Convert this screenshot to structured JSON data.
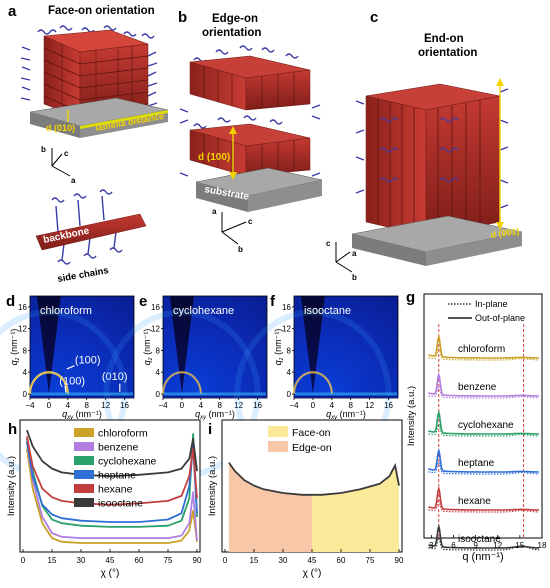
{
  "panels": {
    "a": {
      "letter": "a",
      "title": "Face-on orientation",
      "d_label": "d (010)",
      "lamella": "lamella distance",
      "axes": [
        "a",
        "b",
        "c"
      ],
      "backbone": "backbone",
      "side_chains": "side chains"
    },
    "b": {
      "letter": "b",
      "title_lines": [
        "Edge-on",
        "orientation"
      ],
      "d_label": "d (100)",
      "substrate": "substrate",
      "axes": [
        "a",
        "b",
        "c"
      ]
    },
    "c": {
      "letter": "c",
      "title_lines": [
        "End-on",
        "orientation"
      ],
      "d_label": "d (001)",
      "axes": [
        "a",
        "b",
        "c"
      ]
    },
    "d": {
      "letter": "d",
      "solvent": "chloroform",
      "peaks": [
        "(100)",
        "(100)",
        "(010)"
      ]
    },
    "e": {
      "letter": "e",
      "solvent": "cyclohexane"
    },
    "f": {
      "letter": "f",
      "solvent": "isooctane"
    },
    "g": {
      "letter": "g"
    },
    "h": {
      "letter": "h"
    },
    "i": {
      "letter": "i"
    }
  },
  "giwaxs_axes": {
    "x_label": "q",
    "x_sub": "xy",
    "x_unit": " (nm⁻¹)",
    "y_label": "q",
    "y_sub": "z",
    "y_unit": " (nm⁻¹)",
    "x_ticks": [
      "−4",
      "0",
      "4",
      "8",
      "12",
      "16"
    ],
    "y_ticks": [
      "0",
      "4",
      "8",
      "12",
      "16"
    ]
  },
  "colors": {
    "chloroform": "#c9a227",
    "benzene": "#b07fe0",
    "cyclohexane": "#2aa06a",
    "heptane": "#2f6fd6",
    "hexane": "#c33f3f",
    "isooctane": "#3a3a3a",
    "face_on": "#fbe99a",
    "edge_on": "#f7c7a8",
    "dashed_line": "#d94040"
  },
  "chart_data": [
    {
      "panel": "g",
      "type": "line",
      "xlabel": "q (nm⁻¹)",
      "ylabel": "Intensity (a.u.)",
      "xlim": [
        2,
        18
      ],
      "x_ticks": [
        3,
        6,
        9,
        12,
        15,
        18
      ],
      "legend": [
        {
          "label": "In-plane",
          "style": "dotted"
        },
        {
          "label": "Out-of-plane",
          "style": "solid"
        }
      ],
      "reference_lines_q": [
        4,
        15.5
      ],
      "series": [
        {
          "name": "chloroform",
          "peak_q": 4.0
        },
        {
          "name": "benzene",
          "peak_q": 4.0
        },
        {
          "name": "cyclohexane",
          "peak_q": 4.0
        },
        {
          "name": "heptane",
          "peak_q": 4.0
        },
        {
          "name": "hexane",
          "peak_q": 4.0
        },
        {
          "name": "isooctane",
          "peak_q": 4.0
        }
      ]
    },
    {
      "panel": "h",
      "type": "line",
      "xlabel": "χ (°)",
      "ylabel": "Intensity (a.u.)",
      "xlim": [
        0,
        90
      ],
      "x_ticks": [
        0,
        15,
        30,
        45,
        60,
        75,
        90
      ],
      "series": [
        {
          "name": "chloroform",
          "x": [
            2,
            5,
            10,
            15,
            20,
            30,
            45,
            60,
            75,
            82,
            86,
            88,
            90
          ],
          "y": [
            0.8,
            0.48,
            0.2,
            0.08,
            0.05,
            0.04,
            0.04,
            0.04,
            0.04,
            0.06,
            0.14,
            0.3,
            0.05
          ]
        },
        {
          "name": "benzene",
          "x": [
            2,
            5,
            10,
            15,
            20,
            30,
            45,
            60,
            75,
            82,
            86,
            88,
            90
          ],
          "y": [
            0.85,
            0.55,
            0.25,
            0.12,
            0.09,
            0.08,
            0.08,
            0.08,
            0.08,
            0.1,
            0.2,
            0.45,
            0.06
          ]
        },
        {
          "name": "cyclohexane",
          "x": [
            2,
            5,
            10,
            15,
            20,
            30,
            45,
            60,
            75,
            82,
            86,
            88,
            90
          ],
          "y": [
            0.88,
            0.62,
            0.34,
            0.23,
            0.2,
            0.18,
            0.17,
            0.17,
            0.18,
            0.22,
            0.4,
            0.92,
            0.25
          ]
        },
        {
          "name": "heptane",
          "x": [
            2,
            5,
            10,
            15,
            20,
            30,
            45,
            60,
            75,
            82,
            86,
            88,
            90
          ],
          "y": [
            0.86,
            0.58,
            0.35,
            0.27,
            0.24,
            0.22,
            0.21,
            0.21,
            0.23,
            0.28,
            0.5,
            0.82,
            0.28
          ]
        },
        {
          "name": "hexane",
          "x": [
            2,
            5,
            10,
            15,
            20,
            30,
            45,
            60,
            75,
            82,
            86,
            88,
            90
          ],
          "y": [
            0.9,
            0.66,
            0.48,
            0.41,
            0.38,
            0.36,
            0.35,
            0.36,
            0.38,
            0.42,
            0.58,
            0.8,
            0.4
          ]
        },
        {
          "name": "isooctane",
          "x": [
            2,
            5,
            10,
            15,
            20,
            30,
            45,
            60,
            75,
            82,
            86,
            88,
            90
          ],
          "y": [
            0.95,
            0.82,
            0.7,
            0.64,
            0.61,
            0.59,
            0.58,
            0.59,
            0.61,
            0.64,
            0.72,
            0.88,
            0.62
          ]
        }
      ]
    },
    {
      "panel": "i",
      "type": "area",
      "xlabel": "χ (°)",
      "ylabel": "Intensity (a.u.)",
      "xlim": [
        0,
        90
      ],
      "x_ticks": [
        0,
        15,
        30,
        45,
        60,
        75,
        90
      ],
      "regions": [
        {
          "name": "Face-on",
          "range": [
            45,
            90
          ]
        },
        {
          "name": "Edge-on",
          "range": [
            0,
            45
          ]
        }
      ],
      "series": [
        {
          "name": "isooctane",
          "x": [
            2,
            5,
            10,
            15,
            20,
            30,
            40,
            45,
            50,
            60,
            70,
            80,
            85,
            88,
            90
          ],
          "y": [
            0.95,
            0.86,
            0.76,
            0.7,
            0.66,
            0.62,
            0.6,
            0.6,
            0.6,
            0.62,
            0.66,
            0.72,
            0.8,
            0.92,
            0.7
          ]
        }
      ]
    }
  ]
}
